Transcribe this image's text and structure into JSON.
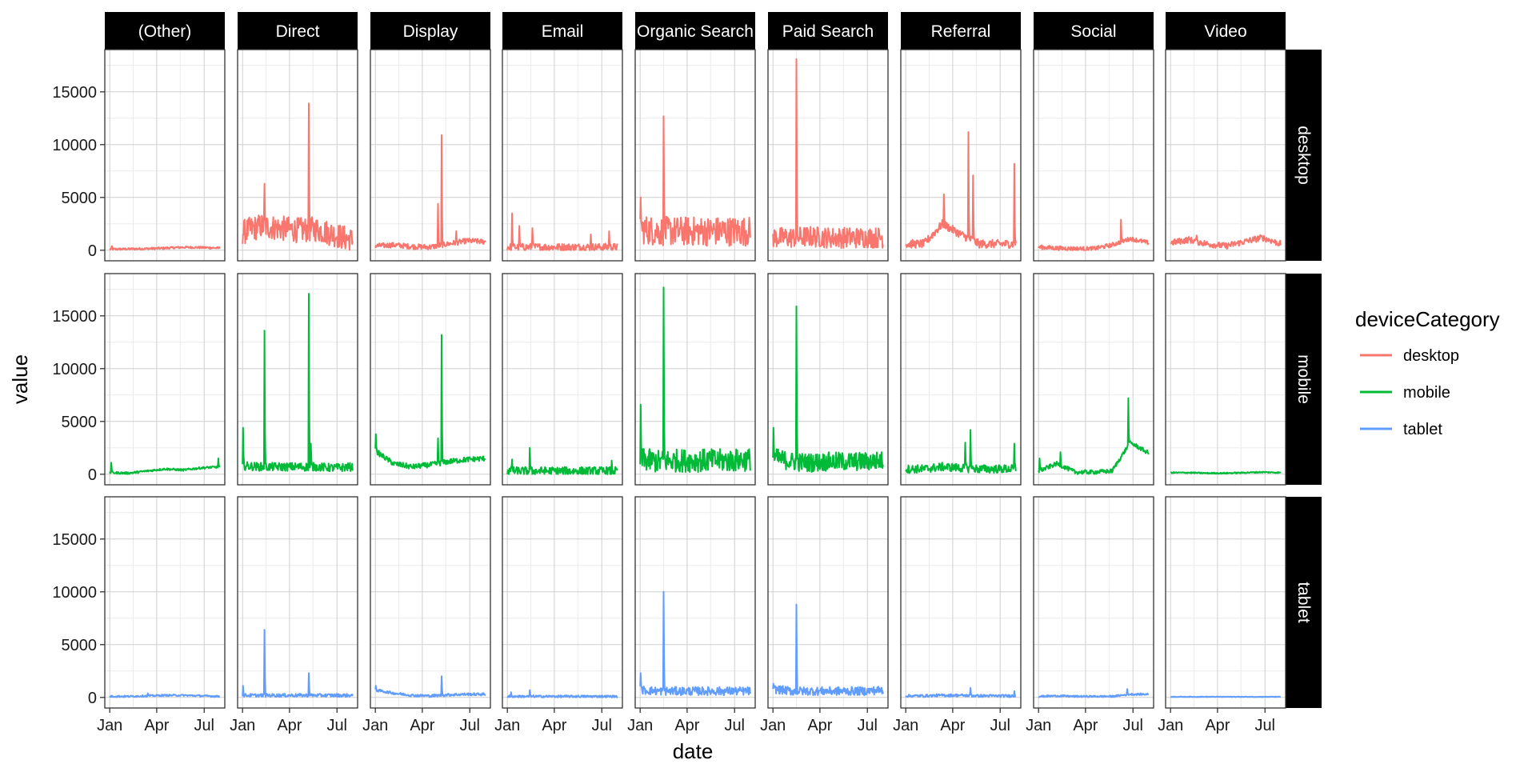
{
  "chart_data": {
    "type": "line",
    "title": "",
    "xlabel": "date",
    "ylabel": "value",
    "facet_columns": [
      "(Other)",
      "Direct",
      "Display",
      "Email",
      "Organic Search",
      "Paid Search",
      "Referral",
      "Social",
      "Video"
    ],
    "facet_rows": [
      "desktop",
      "mobile",
      "tablet"
    ],
    "x_ticks": [
      "Jan",
      "Apr",
      "Jul"
    ],
    "y_ticks": [
      0,
      5000,
      10000,
      15000
    ],
    "ylim": [
      -1000,
      19000
    ],
    "x_range": [
      "2018-01-01",
      "2018-07-31"
    ],
    "grid": true,
    "legend": {
      "title": "deviceCategory",
      "position": "right",
      "entries": [
        "desktop",
        "mobile",
        "tablet"
      ]
    },
    "colors": {
      "desktop": "#F8766D",
      "mobile": "#00BA38",
      "tablet": "#619CFF"
    },
    "series": [
      {
        "row": "desktop",
        "col": "(Other)",
        "base": 150,
        "noise": 100,
        "trend": [
          100,
          120,
          150,
          200,
          280,
          260,
          200
        ],
        "spikes": [
          {
            "date": "2018-01-05",
            "value": 400
          }
        ]
      },
      {
        "row": "desktop",
        "col": "Direct",
        "base": 2000,
        "noise": 1200,
        "trend": [
          1700,
          2300,
          2100,
          1900,
          2000,
          1500,
          900
        ],
        "spikes": [
          {
            "date": "2018-02-12",
            "value": 6300
          },
          {
            "date": "2018-05-08",
            "value": 13900
          }
        ]
      },
      {
        "row": "desktop",
        "col": "Display",
        "base": 400,
        "noise": 250,
        "trend": [
          400,
          500,
          350,
          300,
          600,
          900,
          800
        ],
        "spikes": [
          {
            "date": "2018-05-08",
            "value": 10900
          },
          {
            "date": "2018-05-01",
            "value": 4400
          },
          {
            "date": "2018-06-05",
            "value": 1800
          }
        ]
      },
      {
        "row": "desktop",
        "col": "Email",
        "base": 250,
        "noise": 350,
        "trend": [
          300,
          300,
          300,
          300,
          300,
          300,
          300
        ],
        "spikes": [
          {
            "date": "2018-01-10",
            "value": 3500
          },
          {
            "date": "2018-01-24",
            "value": 2300
          },
          {
            "date": "2018-02-18",
            "value": 2100
          },
          {
            "date": "2018-06-10",
            "value": 1500
          },
          {
            "date": "2018-07-15",
            "value": 1800
          }
        ]
      },
      {
        "row": "desktop",
        "col": "Organic Search",
        "base": 1800,
        "noise": 1400,
        "trend": [
          2000,
          1800,
          1800,
          1800,
          1800,
          1800,
          1800
        ],
        "spikes": [
          {
            "date": "2018-02-15",
            "value": 12700
          },
          {
            "date": "2018-01-02",
            "value": 5000
          }
        ]
      },
      {
        "row": "desktop",
        "col": "Paid Search",
        "base": 1200,
        "noise": 1000,
        "trend": [
          1200,
          1200,
          1300,
          1200,
          1200,
          1200,
          1200
        ],
        "spikes": [
          {
            "date": "2018-02-15",
            "value": 18100
          }
        ]
      },
      {
        "row": "desktop",
        "col": "Referral",
        "base": 600,
        "noise": 400,
        "trend": [
          600,
          600,
          2500,
          1500,
          600,
          600,
          600
        ],
        "spikes": [
          {
            "date": "2018-05-01",
            "value": 11200
          },
          {
            "date": "2018-03-15",
            "value": 5300
          },
          {
            "date": "2018-05-10",
            "value": 7100
          },
          {
            "date": "2018-07-28",
            "value": 8200
          }
        ]
      },
      {
        "row": "desktop",
        "col": "Social",
        "base": 200,
        "noise": 200,
        "trend": [
          300,
          200,
          150,
          150,
          500,
          1100,
          700
        ],
        "spikes": [
          {
            "date": "2018-06-08",
            "value": 2900
          }
        ]
      },
      {
        "row": "desktop",
        "col": "Video",
        "base": 600,
        "noise": 300,
        "trend": [
          700,
          1000,
          600,
          400,
          800,
          1200,
          600
        ],
        "spikes": [
          {
            "date": "2018-02-20",
            "value": 1400
          }
        ]
      },
      {
        "row": "mobile",
        "col": "(Other)",
        "base": 150,
        "noise": 100,
        "trend": [
          150,
          100,
          300,
          500,
          400,
          600,
          700
        ],
        "spikes": [
          {
            "date": "2018-01-04",
            "value": 1100
          },
          {
            "date": "2018-07-28",
            "value": 1500
          }
        ]
      },
      {
        "row": "mobile",
        "col": "Direct",
        "base": 700,
        "noise": 400,
        "trend": [
          800,
          700,
          700,
          700,
          700,
          600,
          700
        ],
        "spikes": [
          {
            "date": "2018-02-12",
            "value": 13600
          },
          {
            "date": "2018-05-08",
            "value": 17100
          },
          {
            "date": "2018-01-02",
            "value": 4400
          },
          {
            "date": "2018-05-12",
            "value": 2900
          }
        ]
      },
      {
        "row": "mobile",
        "col": "Display",
        "base": 900,
        "noise": 250,
        "trend": [
          2200,
          1000,
          700,
          900,
          1200,
          1400,
          1500
        ],
        "spikes": [
          {
            "date": "2018-05-08",
            "value": 13200
          },
          {
            "date": "2018-01-02",
            "value": 3800
          },
          {
            "date": "2018-05-01",
            "value": 3400
          }
        ]
      },
      {
        "row": "mobile",
        "col": "Email",
        "base": 300,
        "noise": 400,
        "trend": [
          300,
          300,
          300,
          300,
          300,
          300,
          300
        ],
        "spikes": [
          {
            "date": "2018-02-13",
            "value": 2500
          },
          {
            "date": "2018-01-10",
            "value": 1400
          },
          {
            "date": "2018-07-20",
            "value": 1300
          }
        ]
      },
      {
        "row": "mobile",
        "col": "Organic Search",
        "base": 1300,
        "noise": 1100,
        "trend": [
          1400,
          1200,
          1300,
          1300,
          1300,
          1300,
          1400
        ],
        "spikes": [
          {
            "date": "2018-02-15",
            "value": 17700
          },
          {
            "date": "2018-01-02",
            "value": 6600
          }
        ]
      },
      {
        "row": "mobile",
        "col": "Paid Search",
        "base": 1200,
        "noise": 900,
        "trend": [
          1600,
          1200,
          1100,
          1200,
          1200,
          1200,
          1300
        ],
        "spikes": [
          {
            "date": "2018-02-15",
            "value": 15900
          },
          {
            "date": "2018-01-02",
            "value": 4400
          }
        ]
      },
      {
        "row": "mobile",
        "col": "Referral",
        "base": 500,
        "noise": 400,
        "trend": [
          500,
          500,
          700,
          600,
          500,
          500,
          500
        ],
        "spikes": [
          {
            "date": "2018-05-05",
            "value": 4200
          },
          {
            "date": "2018-04-25",
            "value": 3000
          },
          {
            "date": "2018-07-28",
            "value": 2900
          }
        ]
      },
      {
        "row": "mobile",
        "col": "Social",
        "base": 300,
        "noise": 200,
        "trend": [
          300,
          1000,
          200,
          200,
          300,
          3000,
          2000
        ],
        "spikes": [
          {
            "date": "2018-06-22",
            "value": 7200
          },
          {
            "date": "2018-01-03",
            "value": 1500
          },
          {
            "date": "2018-02-12",
            "value": 2100
          }
        ]
      },
      {
        "row": "mobile",
        "col": "Video",
        "base": 150,
        "noise": 60,
        "trend": [
          150,
          150,
          100,
          100,
          150,
          200,
          150
        ],
        "spikes": []
      },
      {
        "row": "tablet",
        "col": "(Other)",
        "base": 100,
        "noise": 80,
        "trend": [
          100,
          100,
          150,
          200,
          200,
          150,
          100
        ],
        "spikes": [
          {
            "date": "2018-03-15",
            "value": 400
          }
        ]
      },
      {
        "row": "tablet",
        "col": "Direct",
        "base": 200,
        "noise": 150,
        "trend": [
          200,
          200,
          200,
          200,
          200,
          200,
          200
        ],
        "spikes": [
          {
            "date": "2018-02-12",
            "value": 6400
          },
          {
            "date": "2018-05-08",
            "value": 2300
          },
          {
            "date": "2018-01-02",
            "value": 1100
          }
        ]
      },
      {
        "row": "tablet",
        "col": "Display",
        "base": 250,
        "noise": 120,
        "trend": [
          700,
          400,
          200,
          150,
          250,
          300,
          300
        ],
        "spikes": [
          {
            "date": "2018-05-08",
            "value": 2000
          },
          {
            "date": "2018-01-02",
            "value": 1100
          }
        ]
      },
      {
        "row": "tablet",
        "col": "Email",
        "base": 100,
        "noise": 100,
        "trend": [
          100,
          100,
          100,
          100,
          100,
          100,
          100
        ],
        "spikes": [
          {
            "date": "2018-02-13",
            "value": 700
          },
          {
            "date": "2018-01-08",
            "value": 500
          }
        ]
      },
      {
        "row": "tablet",
        "col": "Organic Search",
        "base": 600,
        "noise": 400,
        "trend": [
          700,
          600,
          600,
          600,
          600,
          600,
          600
        ],
        "spikes": [
          {
            "date": "2018-02-15",
            "value": 10000
          },
          {
            "date": "2018-01-02",
            "value": 2300
          }
        ]
      },
      {
        "row": "tablet",
        "col": "Paid Search",
        "base": 600,
        "noise": 400,
        "trend": [
          800,
          600,
          600,
          600,
          600,
          600,
          700
        ],
        "spikes": [
          {
            "date": "2018-02-15",
            "value": 8800
          },
          {
            "date": "2018-01-02",
            "value": 1300
          }
        ]
      },
      {
        "row": "tablet",
        "col": "Referral",
        "base": 150,
        "noise": 120,
        "trend": [
          150,
          150,
          200,
          200,
          150,
          150,
          150
        ],
        "spikes": [
          {
            "date": "2018-05-05",
            "value": 900
          },
          {
            "date": "2018-07-28",
            "value": 600
          }
        ]
      },
      {
        "row": "tablet",
        "col": "Social",
        "base": 100,
        "noise": 80,
        "trend": [
          100,
          150,
          100,
          100,
          100,
          300,
          300
        ],
        "spikes": [
          {
            "date": "2018-06-20",
            "value": 800
          }
        ]
      },
      {
        "row": "tablet",
        "col": "Video",
        "base": 60,
        "noise": 30,
        "trend": [
          60,
          60,
          60,
          60,
          60,
          60,
          60
        ],
        "spikes": []
      }
    ]
  }
}
